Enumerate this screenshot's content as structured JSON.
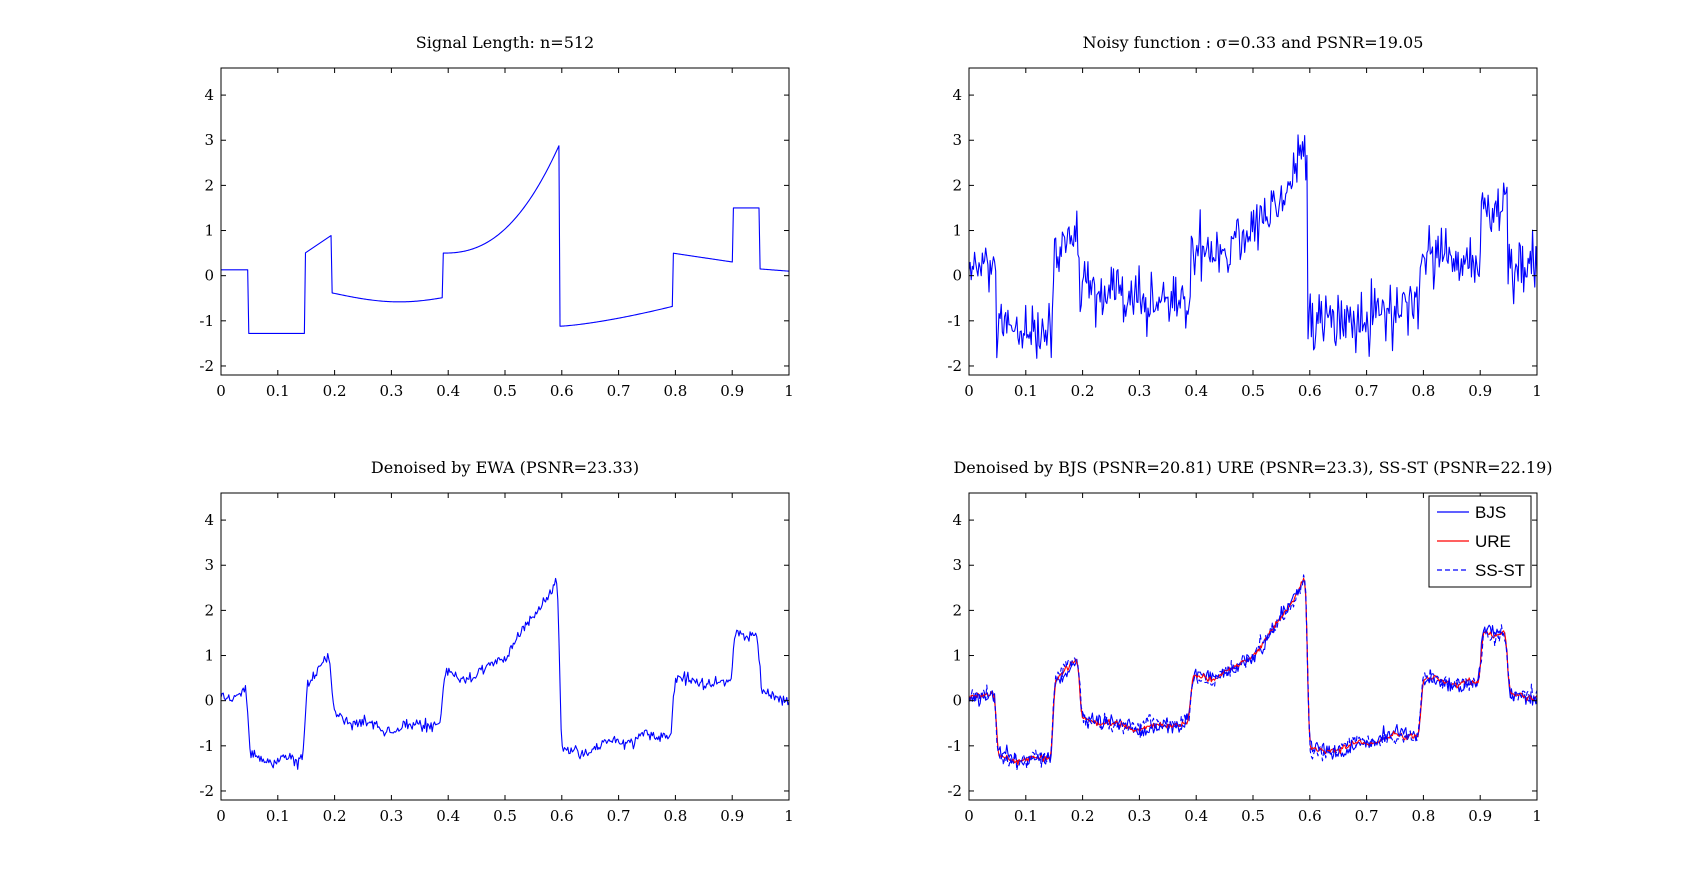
{
  "chart_data": [
    {
      "type": "line",
      "title": "Signal Length: n=512",
      "xlim": [
        0,
        1
      ],
      "ylim": [
        -2.2,
        4.6
      ],
      "xticks": [
        0,
        0.1,
        0.2,
        0.3,
        0.4,
        0.5,
        0.6,
        0.7,
        0.8,
        0.9,
        1
      ],
      "xtick_labels": [
        "0",
        "0.1",
        "0.2",
        "0.3",
        "0.4",
        "0.5",
        "0.6",
        "0.7",
        "0.8",
        "0.9",
        "1"
      ],
      "yticks": [
        -2,
        -1,
        0,
        1,
        2,
        3,
        4
      ],
      "ytick_labels": [
        "-2",
        "-1",
        "0",
        "1",
        "2",
        "3",
        "4"
      ],
      "grid": false,
      "series": [
        {
          "color": "#0000ff",
          "dash": "none",
          "kind": "piecewise_smooth_test_signal"
        }
      ]
    },
    {
      "type": "line",
      "title": "Noisy function : σ=0.33 and PSNR=19.05",
      "xlim": [
        0,
        1
      ],
      "ylim": [
        -2.2,
        4.6
      ],
      "xticks": [
        0,
        0.1,
        0.2,
        0.3,
        0.4,
        0.5,
        0.6,
        0.7,
        0.8,
        0.9,
        1
      ],
      "xtick_labels": [
        "0",
        "0.1",
        "0.2",
        "0.3",
        "0.4",
        "0.5",
        "0.6",
        "0.7",
        "0.8",
        "0.9",
        "1"
      ],
      "yticks": [
        -2,
        -1,
        0,
        1,
        2,
        3,
        4
      ],
      "ytick_labels": [
        "-2",
        "-1",
        "0",
        "1",
        "2",
        "3",
        "4"
      ],
      "grid": false,
      "series": [
        {
          "color": "#0000ff",
          "dash": "none",
          "kind": "noisy",
          "noise_sigma": 0.33
        }
      ]
    },
    {
      "type": "line",
      "title": "Denoised by EWA (PSNR=23.33)",
      "xlim": [
        0,
        1
      ],
      "ylim": [
        -2.2,
        4.6
      ],
      "xticks": [
        0,
        0.1,
        0.2,
        0.3,
        0.4,
        0.5,
        0.6,
        0.7,
        0.8,
        0.9,
        1
      ],
      "xtick_labels": [
        "0",
        "0.1",
        "0.2",
        "0.3",
        "0.4",
        "0.5",
        "0.6",
        "0.7",
        "0.8",
        "0.9",
        "1"
      ],
      "yticks": [
        -2,
        -1,
        0,
        1,
        2,
        3,
        4
      ],
      "ytick_labels": [
        "-2",
        "-1",
        "0",
        "1",
        "2",
        "3",
        "4"
      ],
      "grid": false,
      "series": [
        {
          "color": "#0000ff",
          "dash": "none",
          "kind": "denoised",
          "residual": 0.11,
          "wiggle": 0.08,
          "seed": 11
        }
      ]
    },
    {
      "type": "line",
      "title": "Denoised by BJS (PSNR=20.81) URE (PSNR=23.3), SS-ST (PSNR=22.19)",
      "xlim": [
        0,
        1
      ],
      "ylim": [
        -2.2,
        4.6
      ],
      "xticks": [
        0,
        0.1,
        0.2,
        0.3,
        0.4,
        0.5,
        0.6,
        0.7,
        0.8,
        0.9,
        1
      ],
      "xtick_labels": [
        "0",
        "0.1",
        "0.2",
        "0.3",
        "0.4",
        "0.5",
        "0.6",
        "0.7",
        "0.8",
        "0.9",
        "1"
      ],
      "yticks": [
        -2,
        -1,
        0,
        1,
        2,
        3,
        4
      ],
      "ytick_labels": [
        "-2",
        "-1",
        "0",
        "1",
        "2",
        "3",
        "4"
      ],
      "grid": false,
      "legend": {
        "position": "top-right",
        "entries": [
          "BJS",
          "URE",
          "SS-ST"
        ]
      },
      "series": [
        {
          "name": "BJS",
          "color": "#0000ff",
          "dash": "none",
          "kind": "denoised",
          "residual": 0.14,
          "wiggle": 0.06,
          "seed": 21
        },
        {
          "name": "URE",
          "color": "#ff0000",
          "dash": "none",
          "kind": "denoised",
          "residual": 0.06,
          "wiggle": 0.05,
          "seed": 33
        },
        {
          "name": "SS-ST",
          "color": "#0000ff",
          "dash": "dashed",
          "kind": "denoised",
          "residual": 0.16,
          "wiggle": 0.04,
          "seed": 47
        }
      ]
    }
  ]
}
